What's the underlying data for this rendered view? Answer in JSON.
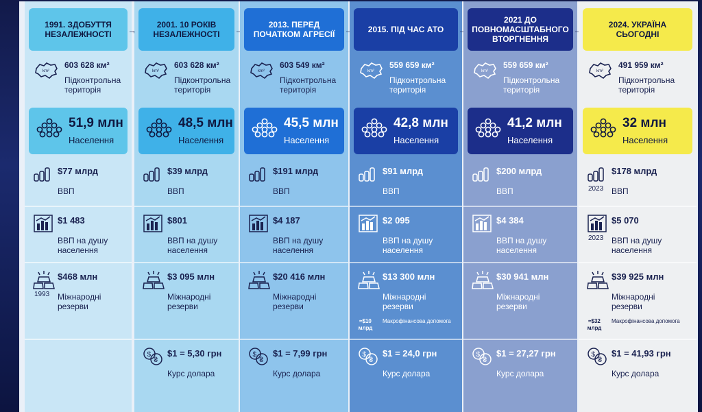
{
  "columns": [
    {
      "title": "1991. ЗДОБУТТЯ НЕЗАЛЕЖНОСТІ",
      "area": "603 628 км²",
      "area_label": "Підконтрольна територія",
      "population": "51,9 млн",
      "population_label": "Населення",
      "gdp": "$77 млрд",
      "gdp_year": "",
      "gdp_label": "ВВП",
      "gdp_pc": "$1 483",
      "gdp_pc_year": "",
      "gdp_pc_label": "ВВП на душу населення",
      "reserves": "$468 млн",
      "reserves_year": "1993",
      "reserves_label": "Міжнародні резерви",
      "aid_amount": "",
      "aid_label": "",
      "rate": "",
      "rate_label": ""
    },
    {
      "title": "2001. 10 РОКІВ НЕЗАЛЕЖНОСТІ",
      "area": "603 628 км²",
      "area_label": "Підконтрольна територія",
      "population": "48,5 млн",
      "population_label": "Населення",
      "gdp": "$39 млрд",
      "gdp_year": "",
      "gdp_label": "ВВП",
      "gdp_pc": "$801",
      "gdp_pc_year": "",
      "gdp_pc_label": "ВВП на душу населення",
      "reserves": "$3 095 млн",
      "reserves_year": "",
      "reserves_label": "Міжнародні резерви",
      "aid_amount": "",
      "aid_label": "",
      "rate": "$1 = 5,30 грн",
      "rate_label": "Курс долара"
    },
    {
      "title": "2013. ПЕРЕД ПОЧАТКОМ АГРЕСІЇ",
      "area": "603 549 км²",
      "area_label": "Підконтрольна територія",
      "population": "45,5 млн",
      "population_label": "Населення",
      "gdp": "$191 млрд",
      "gdp_year": "",
      "gdp_label": "ВВП",
      "gdp_pc": "$4 187",
      "gdp_pc_year": "",
      "gdp_pc_label": "ВВП на душу населення",
      "reserves": "$20 416 млн",
      "reserves_year": "",
      "reserves_label": "Міжнародні резерви",
      "aid_amount": "",
      "aid_label": "",
      "rate": "$1 = 7,99 грн",
      "rate_label": "Курс долара"
    },
    {
      "title": "2015. ПІД ЧАС АТО",
      "area": "559 659 км²",
      "area_label": "Підконтрольна територія",
      "population": "42,8 млн",
      "population_label": "Населення",
      "gdp": "$91 млрд",
      "gdp_year": "",
      "gdp_label": "ВВП",
      "gdp_pc": "$2 095",
      "gdp_pc_year": "",
      "gdp_pc_label": "ВВП на душу населення",
      "reserves": "$13 300 млн",
      "reserves_year": "",
      "reserves_label": "Міжнародні резерви",
      "aid_amount": "≈$10 млрд",
      "aid_label": "Макрофінансова допомога",
      "rate": "$1 = 24,0 грн",
      "rate_label": "Курс долара"
    },
    {
      "title": "2021 ДО ПОВНОМАСШТАБНОГО ВТОРГНЕННЯ",
      "area": "559 659 км²",
      "area_label": "Підконтрольна територія",
      "population": "41,2 млн",
      "population_label": "Населення",
      "gdp": "$200 млрд",
      "gdp_year": "",
      "gdp_label": "ВВП",
      "gdp_pc": "$4 384",
      "gdp_pc_year": "",
      "gdp_pc_label": "ВВП на душу населення",
      "reserves": "$30 941 млн",
      "reserves_year": "",
      "reserves_label": "Міжнародні резерви",
      "aid_amount": "",
      "aid_label": "",
      "rate": "$1 = 27,27 грн",
      "rate_label": "Курс долара"
    },
    {
      "title": "2024. УКРАЇНА СЬОГОДНІ",
      "area": "491 959 км²",
      "area_label": "Підконтрольна територія",
      "population": "32 млн",
      "population_label": "Населення",
      "gdp": "$178 млрд",
      "gdp_year": "2023",
      "gdp_label": "ВВП",
      "gdp_pc": "$5 070",
      "gdp_pc_year": "2023",
      "gdp_pc_label": "ВВП на душу населення",
      "reserves": "$39 925 млн",
      "reserves_year": "",
      "reserves_label": "Міжнародні резерви",
      "aid_amount": "≈$32 млрд",
      "aid_label": "Макрофінансова допомога",
      "rate": "$1 = 41,93 грн",
      "rate_label": "Курс долара"
    }
  ],
  "colors": {
    "col_bg": [
      "#c9e6f6",
      "#a9d8f1",
      "#8ec4ec",
      "#5b8fd0",
      "#8aa0cf",
      "#eef0f2"
    ],
    "hdr_bg": [
      "#5ec5ea",
      "#3fb1e8",
      "#1f6fd6",
      "#1a3fa5",
      "#1c2e8a",
      "#f5ea4b"
    ],
    "hdr_fg": [
      "#0f1840",
      "#0f1840",
      "#ffffff",
      "#ffffff",
      "#ffffff",
      "#0f1840"
    ],
    "pop_bg": [
      "#5ec5ea",
      "#3fb1e8",
      "#1f6fd6",
      "#1a3fa5",
      "#1c2e8a",
      "#f5ea4b"
    ],
    "pop_fg": [
      "#0f1840",
      "#0f1840",
      "#ffffff",
      "#ffffff",
      "#ffffff",
      "#0f1840"
    ],
    "text": [
      "#1a2250",
      "#1a2250",
      "#1a2250",
      "#ffffff",
      "#ffffff",
      "#1a2250"
    ]
  }
}
